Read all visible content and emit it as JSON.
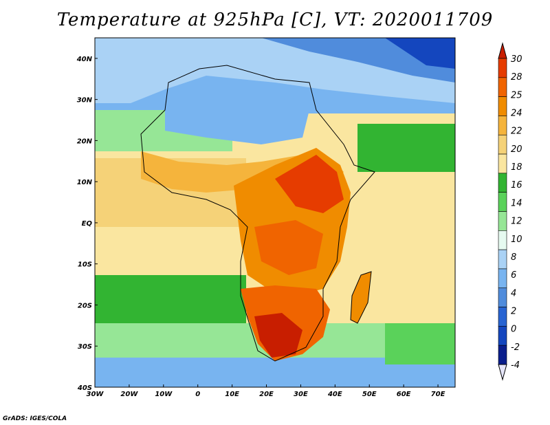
{
  "title": "Temperature at 925hPa [C], VT: 2020011709",
  "credit": "GrADS: IGES/COLA",
  "map": {
    "lon_range": [
      -30,
      75
    ],
    "lat_range": [
      -40,
      45
    ],
    "lon_ticks": [
      "30W",
      "20W",
      "10W",
      "0",
      "10E",
      "20E",
      "30E",
      "40E",
      "50E",
      "60E",
      "70E"
    ],
    "lat_ticks": [
      "40N",
      "30N",
      "20N",
      "10N",
      "EQ",
      "10S",
      "20S",
      "30S",
      "40S"
    ]
  },
  "colorbar": {
    "labels": [
      "30",
      "28",
      "25",
      "24",
      "22",
      "20",
      "18",
      "16",
      "14",
      "12",
      "10",
      "8",
      "6",
      "4",
      "2",
      "0",
      "-2",
      "-4"
    ],
    "colors": [
      "#c81e00",
      "#e63c00",
      "#f06400",
      "#f08c00",
      "#f5b43c",
      "#f5d278",
      "#fae6a0",
      "#32b432",
      "#5ad25a",
      "#96e696",
      "#e6faf0",
      "#aad2f5",
      "#78b4f0",
      "#508cdc",
      "#2864d2",
      "#1446be",
      "#0a1e8c",
      "#e6e6fa"
    ]
  }
}
